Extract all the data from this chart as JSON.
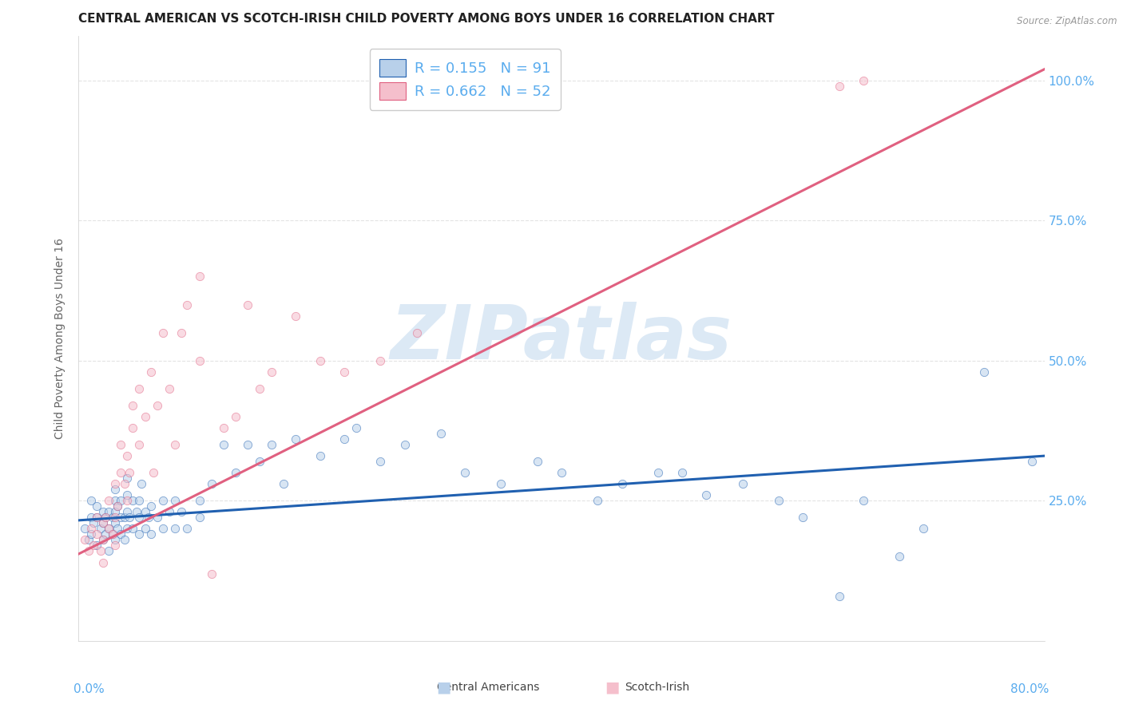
{
  "title": "CENTRAL AMERICAN VS SCOTCH-IRISH CHILD POVERTY AMONG BOYS UNDER 16 CORRELATION CHART",
  "source": "Source: ZipAtlas.com",
  "ylabel": "Child Poverty Among Boys Under 16",
  "xmin": 0.0,
  "xmax": 0.8,
  "ymin": 0.0,
  "ymax": 1.08,
  "yticks": [
    0.25,
    0.5,
    0.75,
    1.0
  ],
  "ytick_labels": [
    "25.0%",
    "50.0%",
    "75.0%",
    "100.0%"
  ],
  "blue_R": 0.155,
  "blue_N": 91,
  "pink_R": 0.662,
  "pink_N": 52,
  "blue_color": "#b8d0ea",
  "pink_color": "#f5bfcc",
  "blue_line_color": "#2060b0",
  "pink_line_color": "#e06080",
  "right_axis_color": "#5aacee",
  "watermark_color": "#dce9f5",
  "watermark_text": "ZIPatlas",
  "legend_label_blue": "Central Americans",
  "legend_label_pink": "Scotch-Irish",
  "blue_scatter_x": [
    0.005,
    0.008,
    0.01,
    0.01,
    0.01,
    0.012,
    0.015,
    0.015,
    0.015,
    0.018,
    0.02,
    0.02,
    0.02,
    0.022,
    0.022,
    0.025,
    0.025,
    0.025,
    0.028,
    0.028,
    0.03,
    0.03,
    0.03,
    0.03,
    0.03,
    0.032,
    0.032,
    0.035,
    0.035,
    0.035,
    0.038,
    0.038,
    0.04,
    0.04,
    0.04,
    0.04,
    0.042,
    0.045,
    0.045,
    0.048,
    0.05,
    0.05,
    0.05,
    0.052,
    0.055,
    0.055,
    0.058,
    0.06,
    0.06,
    0.065,
    0.07,
    0.07,
    0.075,
    0.08,
    0.08,
    0.085,
    0.09,
    0.1,
    0.1,
    0.11,
    0.12,
    0.13,
    0.14,
    0.15,
    0.16,
    0.17,
    0.18,
    0.2,
    0.22,
    0.23,
    0.25,
    0.27,
    0.3,
    0.32,
    0.35,
    0.38,
    0.4,
    0.43,
    0.45,
    0.48,
    0.5,
    0.52,
    0.55,
    0.58,
    0.6,
    0.63,
    0.65,
    0.68,
    0.7,
    0.75,
    0.79
  ],
  "blue_scatter_y": [
    0.2,
    0.18,
    0.22,
    0.25,
    0.19,
    0.21,
    0.17,
    0.22,
    0.24,
    0.2,
    0.18,
    0.21,
    0.23,
    0.19,
    0.22,
    0.16,
    0.2,
    0.23,
    0.19,
    0.22,
    0.18,
    0.21,
    0.23,
    0.25,
    0.27,
    0.2,
    0.24,
    0.19,
    0.22,
    0.25,
    0.18,
    0.22,
    0.2,
    0.23,
    0.26,
    0.29,
    0.22,
    0.2,
    0.25,
    0.23,
    0.19,
    0.22,
    0.25,
    0.28,
    0.2,
    0.23,
    0.22,
    0.19,
    0.24,
    0.22,
    0.2,
    0.25,
    0.23,
    0.2,
    0.25,
    0.23,
    0.2,
    0.25,
    0.22,
    0.28,
    0.35,
    0.3,
    0.35,
    0.32,
    0.35,
    0.28,
    0.36,
    0.33,
    0.36,
    0.38,
    0.32,
    0.35,
    0.37,
    0.3,
    0.28,
    0.32,
    0.3,
    0.25,
    0.28,
    0.3,
    0.3,
    0.26,
    0.28,
    0.25,
    0.22,
    0.08,
    0.25,
    0.15,
    0.2,
    0.48,
    0.32
  ],
  "pink_scatter_x": [
    0.005,
    0.008,
    0.01,
    0.012,
    0.015,
    0.015,
    0.018,
    0.02,
    0.02,
    0.02,
    0.022,
    0.025,
    0.025,
    0.028,
    0.03,
    0.03,
    0.03,
    0.032,
    0.035,
    0.035,
    0.038,
    0.04,
    0.04,
    0.042,
    0.045,
    0.045,
    0.05,
    0.05,
    0.055,
    0.06,
    0.062,
    0.065,
    0.07,
    0.075,
    0.08,
    0.085,
    0.09,
    0.1,
    0.1,
    0.11,
    0.12,
    0.13,
    0.14,
    0.15,
    0.16,
    0.18,
    0.2,
    0.22,
    0.25,
    0.28,
    0.63,
    0.65
  ],
  "pink_scatter_y": [
    0.18,
    0.16,
    0.2,
    0.17,
    0.19,
    0.22,
    0.16,
    0.18,
    0.21,
    0.14,
    0.22,
    0.2,
    0.25,
    0.19,
    0.17,
    0.22,
    0.28,
    0.24,
    0.3,
    0.35,
    0.28,
    0.25,
    0.33,
    0.3,
    0.38,
    0.42,
    0.45,
    0.35,
    0.4,
    0.48,
    0.3,
    0.42,
    0.55,
    0.45,
    0.35,
    0.55,
    0.6,
    0.5,
    0.65,
    0.12,
    0.38,
    0.4,
    0.6,
    0.45,
    0.48,
    0.58,
    0.5,
    0.48,
    0.5,
    0.55,
    0.99,
    1.0
  ],
  "blue_trend_x": [
    0.0,
    0.8
  ],
  "blue_trend_y": [
    0.215,
    0.33
  ],
  "pink_trend_x": [
    0.0,
    0.8
  ],
  "pink_trend_y": [
    0.155,
    1.02
  ],
  "background_color": "#ffffff",
  "grid_color": "#e0e0e0",
  "title_fontsize": 11,
  "axis_label_fontsize": 10,
  "tick_fontsize": 10,
  "scatter_size": 55,
  "scatter_alpha": 0.55
}
